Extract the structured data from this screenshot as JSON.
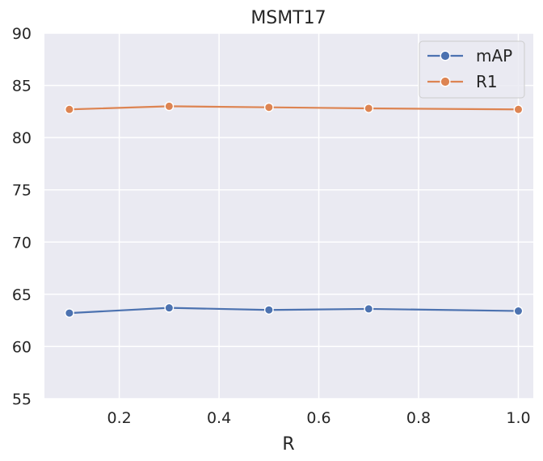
{
  "chart_data": {
    "type": "line",
    "title": "MSMT17",
    "xlabel": "R",
    "ylabel": "",
    "x": [
      0.1,
      0.3,
      0.5,
      0.7,
      1.0
    ],
    "xlim": [
      0.05,
      1.03
    ],
    "ylim": [
      55,
      90
    ],
    "xticks": [
      0.2,
      0.4,
      0.6,
      0.8,
      1.0
    ],
    "xtick_labels": [
      "0.2",
      "0.4",
      "0.6",
      "0.8",
      "1.0"
    ],
    "yticks": [
      55,
      60,
      65,
      70,
      75,
      80,
      85,
      90
    ],
    "ytick_labels": [
      "55",
      "60",
      "65",
      "70",
      "75",
      "80",
      "85",
      "90"
    ],
    "grid": true,
    "legend_position": "top-right",
    "series": [
      {
        "name": "mAP",
        "color": "#4c72b0",
        "values": [
          63.2,
          63.7,
          63.5,
          63.6,
          63.4
        ]
      },
      {
        "name": "R1",
        "color": "#dd8452",
        "values": [
          82.7,
          83.0,
          82.9,
          82.8,
          82.7
        ]
      }
    ],
    "background_color": "#eaeaf2",
    "grid_color": "#ffffff"
  }
}
